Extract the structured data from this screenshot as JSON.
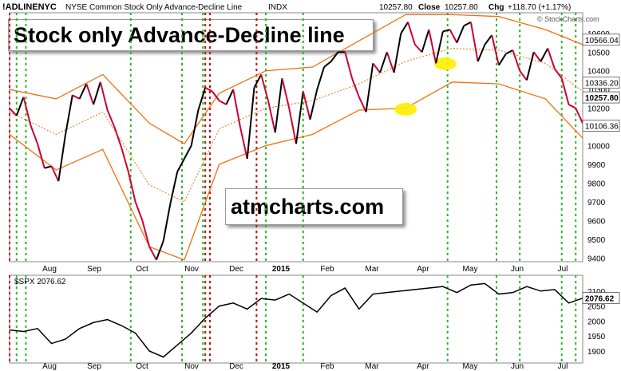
{
  "header": {
    "symbol": "!ADLINENYC",
    "description": "NYSE Common Stock Only Advance-Decline Line",
    "exchange": "INDX",
    "last_label": "10257.80",
    "close_label": "Close",
    "close_value": "10257.80",
    "chg_label": "Chg",
    "chg_value": "+118.70 (+1.17%)",
    "watermark": "© StockCharts.com"
  },
  "overlay": {
    "title_box": "Stock only Advance-Decline line",
    "site_box": "atmcharts.com"
  },
  "colors": {
    "price_up": "#000000",
    "price_down": "#cc0033",
    "bands": "#f07010",
    "green_markers": "#22bb22",
    "red_markers": "#cc0000",
    "highlight": "#ffee00",
    "tag_bg": "#000000",
    "tag_fg": "#ffffff"
  },
  "chart_data": [
    {
      "type": "line",
      "title": "!ADLINENYC",
      "series": [
        {
          "name": "!ADLINENYC",
          "x": [
            0,
            3,
            6,
            9,
            12,
            15,
            18,
            21,
            24,
            27,
            30,
            33,
            36,
            39,
            42,
            45,
            48,
            51,
            54,
            57,
            60,
            63,
            66,
            69,
            72,
            75,
            78,
            81,
            84,
            87,
            90,
            93,
            96,
            99,
            102,
            105,
            108,
            111,
            114,
            117,
            120,
            123,
            126,
            129,
            132,
            135,
            138,
            141,
            144,
            147,
            150,
            153,
            156,
            159,
            162,
            165,
            168,
            171,
            174,
            177,
            180,
            183,
            186,
            189,
            192,
            195,
            198,
            201,
            204,
            207,
            210,
            213,
            216,
            219,
            222,
            225,
            228,
            231,
            234,
            237,
            240,
            243,
            246
          ],
          "values": [
            10200,
            10160,
            10260,
            10110,
            10010,
            9880,
            9890,
            9810,
            10060,
            10270,
            10250,
            10330,
            10220,
            10340,
            10190,
            10100,
            9990,
            9860,
            9700,
            9600,
            9460,
            9390,
            9490,
            9690,
            9860,
            9930,
            10000,
            10190,
            10310,
            10290,
            10240,
            10220,
            10300,
            10100,
            9930,
            10310,
            10380,
            10240,
            10070,
            10360,
            10200,
            10010,
            10290,
            10140,
            10300,
            10420,
            10450,
            10500,
            10500,
            10360,
            10260,
            10180,
            10440,
            10390,
            10500,
            10390,
            10600,
            10660,
            10540,
            10500,
            10620,
            10440,
            10610,
            10620,
            10550,
            10640,
            10660,
            10450,
            10540,
            10590,
            10430,
            10490,
            10510,
            10400,
            10350,
            10500,
            10450,
            10520,
            10410,
            10360,
            10220,
            10200,
            10120
          ]
        },
        {
          "name": "Upper band",
          "x": [
            0,
            20,
            40,
            60,
            75,
            90,
            110,
            130,
            150,
            170,
            190,
            210,
            230,
            246
          ],
          "values": [
            10300,
            10250,
            10380,
            10120,
            10010,
            10280,
            10400,
            10420,
            10560,
            10700,
            10700,
            10690,
            10620,
            10540
          ]
        },
        {
          "name": "Middle band",
          "x": [
            0,
            20,
            40,
            60,
            75,
            90,
            110,
            130,
            150,
            170,
            190,
            210,
            230,
            246
          ],
          "values": [
            10180,
            10060,
            10180,
            9790,
            9700,
            10090,
            10200,
            10240,
            10330,
            10450,
            10520,
            10510,
            10440,
            10290
          ]
        },
        {
          "name": "Lower band",
          "x": [
            0,
            20,
            40,
            60,
            75,
            90,
            110,
            130,
            150,
            170,
            190,
            210,
            230,
            246
          ],
          "values": [
            10060,
            9870,
            9980,
            9460,
            9390,
            9900,
            10000,
            10060,
            10190,
            10200,
            10340,
            10330,
            10250,
            10040
          ]
        }
      ],
      "yticks": [
        "10600",
        "10500",
        "10400",
        "10300",
        "10200",
        "10100",
        "10000",
        "9900",
        "9800",
        "9700",
        "9600",
        "9500",
        "9400"
      ],
      "ylim": [
        9380,
        10710
      ],
      "price_tags": [
        "10566.04",
        "10336.20",
        "10257.80",
        "10106.36"
      ],
      "xticks": [
        "Aug",
        "Sep",
        "Oct",
        "Nov",
        "Dec",
        "2015",
        "Feb",
        "Mar",
        "Apr",
        "May",
        "Jun",
        "Jul"
      ]
    },
    {
      "type": "line",
      "title": "$SPX 2076.62",
      "series": [
        {
          "name": "$SPX",
          "x": [
            0,
            6,
            12,
            18,
            24,
            30,
            36,
            42,
            48,
            54,
            60,
            66,
            72,
            78,
            84,
            90,
            96,
            102,
            108,
            114,
            120,
            126,
            132,
            138,
            144,
            150,
            156,
            162,
            168,
            174,
            180,
            186,
            192,
            198,
            204,
            210,
            216,
            222,
            228,
            234,
            240,
            246
          ],
          "values": [
            1970,
            1965,
            1975,
            1925,
            1940,
            1975,
            1995,
            2005,
            1985,
            1960,
            1900,
            1880,
            1920,
            1960,
            2010,
            2050,
            2060,
            2040,
            2075,
            2070,
            2090,
            2060,
            2030,
            2085,
            2110,
            2040,
            2090,
            2095,
            2100,
            2105,
            2110,
            2115,
            2095,
            2120,
            2125,
            2090,
            2095,
            2115,
            2100,
            2105,
            2060,
            2076
          ]
        }
      ],
      "yticks": [
        "2100",
        "2050",
        "2000",
        "1950",
        "1900"
      ],
      "ylim": [
        1860,
        2150
      ],
      "price_tag": "2076.62",
      "xticks": [
        "Aug",
        "Sep",
        "Oct",
        "Nov",
        "Dec",
        "2015",
        "Feb",
        "Mar",
        "Apr",
        "May",
        "Jun",
        "Jul"
      ]
    }
  ],
  "markers": {
    "green_x": [
      3,
      7,
      52,
      74,
      83,
      110,
      126,
      188,
      209,
      219,
      237,
      243
    ],
    "red_x": [
      0,
      84,
      86,
      106
    ],
    "highlight_x": [
      170,
      187
    ]
  }
}
